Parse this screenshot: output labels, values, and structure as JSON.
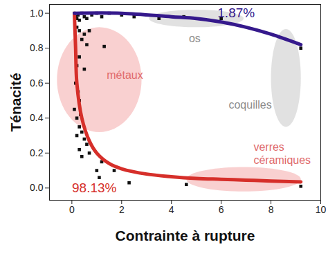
{
  "chart_data": {
    "type": "scatter",
    "xlabel": "Contrainte à rupture",
    "ylabel": "Ténacité",
    "xlim": [
      -0.9,
      10
    ],
    "ylim": [
      -0.07,
      1.05
    ],
    "xticks": [
      0,
      2,
      4,
      6,
      8,
      10
    ],
    "yticks": [
      {
        "value": 0,
        "label": "0.0"
      },
      {
        "value": 0.2,
        "label": "0.2"
      },
      {
        "value": 0.4,
        "label": "0.4"
      },
      {
        "value": 0.6,
        "label": "0.6"
      },
      {
        "value": 0.8,
        "label": "0.8"
      },
      {
        "value": 1,
        "label": "1.0"
      }
    ],
    "grid": false,
    "marker": "square",
    "color": "#111111",
    "x": [
      0.1,
      0.15,
      0.2,
      0.25,
      0.3,
      0.4,
      0.5,
      0.6,
      0.8,
      1.0,
      1.2,
      1.5,
      2.0,
      2.5,
      3.5,
      4.5,
      6.0,
      0.2,
      0.3,
      0.5,
      0.7,
      0.4,
      0.6,
      1.3,
      0.3,
      0.2,
      0.5,
      0.15,
      0.25,
      0.3,
      0.1,
      0.2,
      0.35,
      0.3,
      0.4,
      0.2,
      0.5,
      0.6,
      0.3,
      0.4,
      0.7,
      1.2,
      1.0,
      1.1,
      2.3,
      4.6,
      9.2,
      9.2,
      1.7
    ],
    "values": [
      1.0,
      0.98,
      0.97,
      0.99,
      0.96,
      1.0,
      0.98,
      0.97,
      0.99,
      1.0,
      0.98,
      1.0,
      0.99,
      0.98,
      0.97,
      0.98,
      0.97,
      0.92,
      0.9,
      0.88,
      0.9,
      0.85,
      0.82,
      0.81,
      0.75,
      0.7,
      0.68,
      0.6,
      0.55,
      0.5,
      0.45,
      0.4,
      0.42,
      0.35,
      0.32,
      0.3,
      0.28,
      0.25,
      0.22,
      0.18,
      0.2,
      0.15,
      0.1,
      0.06,
      0.03,
      0.02,
      0.01,
      0.8,
      0.1
    ],
    "series": [
      {
        "name": "98.13%",
        "color": "#d62f2a",
        "type": "line",
        "x": [
          0.1,
          0.15,
          0.2,
          0.4,
          0.7,
          1.0,
          1.5,
          2.0,
          3.0,
          4.0,
          5.0,
          6.0,
          7.0,
          8.0,
          9.2
        ],
        "values": [
          1.0,
          0.8,
          0.6,
          0.4,
          0.27,
          0.2,
          0.14,
          0.11,
          0.08,
          0.065,
          0.055,
          0.05,
          0.045,
          0.04,
          0.035
        ],
        "label_position": [
          0.9,
          0.0
        ]
      },
      {
        "name": "1.87%",
        "color": "#35198c",
        "type": "line",
        "x": [
          0.1,
          2.0,
          4.0,
          5.0,
          6.0,
          7.0,
          8.0,
          9.2
        ],
        "values": [
          1.0,
          1.0,
          0.98,
          0.97,
          0.95,
          0.92,
          0.88,
          0.82
        ],
        "label_position": [
          6.6,
          1.0
        ]
      }
    ],
    "regions": [
      {
        "cx": 5.0,
        "cy": 0.97,
        "rx": 1.9,
        "ry": 0.05,
        "color": "#c8c8c8"
      },
      {
        "cx": 1.1,
        "cy": 0.62,
        "rx": 1.7,
        "ry": 0.3,
        "color": "#f4a9a9"
      },
      {
        "cx": 8.6,
        "cy": 0.63,
        "rx": 0.6,
        "ry": 0.28,
        "color": "#c8c8c8"
      },
      {
        "cx": 6.9,
        "cy": 0.05,
        "rx": 2.3,
        "ry": 0.07,
        "color": "#f4a9a9"
      }
    ],
    "annotations": [
      {
        "text": "os",
        "x": 4.7,
        "y": 0.86,
        "color": "#8c8c8c"
      },
      {
        "text": "métaux",
        "x": 1.4,
        "y": 0.65,
        "color": "#e06a6a"
      },
      {
        "text": "coquilles",
        "x": 6.3,
        "y": 0.48,
        "color": "#8c8c8c"
      },
      {
        "text": "verres\ncéramiques",
        "x": 7.3,
        "y": 0.2,
        "color": "#e06a6a"
      }
    ]
  }
}
